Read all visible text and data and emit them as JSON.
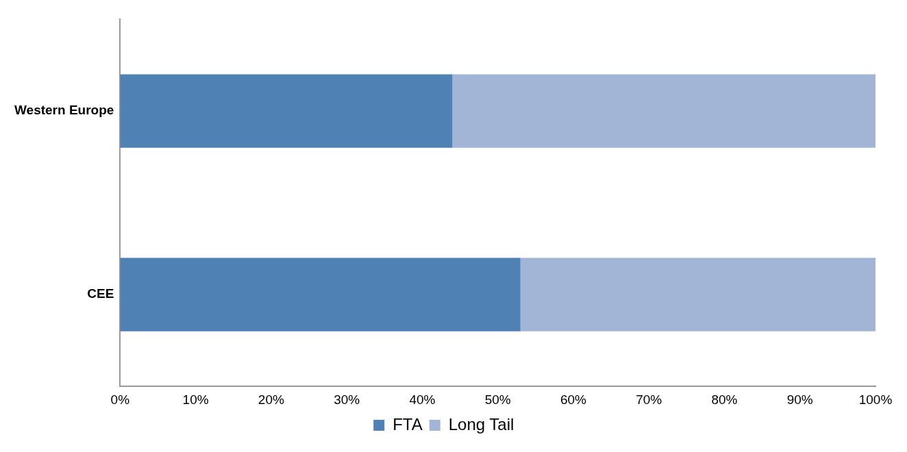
{
  "chart_data": {
    "type": "bar",
    "orientation": "horizontal",
    "stacked": true,
    "categories": [
      "Western Europe",
      "CEE"
    ],
    "series": [
      {
        "name": "FTA",
        "color": "#4f81b5",
        "values": [
          44,
          53
        ]
      },
      {
        "name": "Long Tail",
        "color": "#a2b5d6",
        "values": [
          56,
          47
        ]
      }
    ],
    "xlim": [
      0,
      100
    ],
    "xticks": [
      {
        "value": 0,
        "label": "0%"
      },
      {
        "value": 10,
        "label": "10%"
      },
      {
        "value": 20,
        "label": "20%"
      },
      {
        "value": 30,
        "label": "30%"
      },
      {
        "value": 40,
        "label": "40%"
      },
      {
        "value": 50,
        "label": "50%"
      },
      {
        "value": 60,
        "label": "60%"
      },
      {
        "value": 70,
        "label": "70%"
      },
      {
        "value": 80,
        "label": "80%"
      },
      {
        "value": 90,
        "label": "90%"
      },
      {
        "value": 100,
        "label": "100%"
      }
    ],
    "grid": false,
    "legend": "bottom"
  }
}
